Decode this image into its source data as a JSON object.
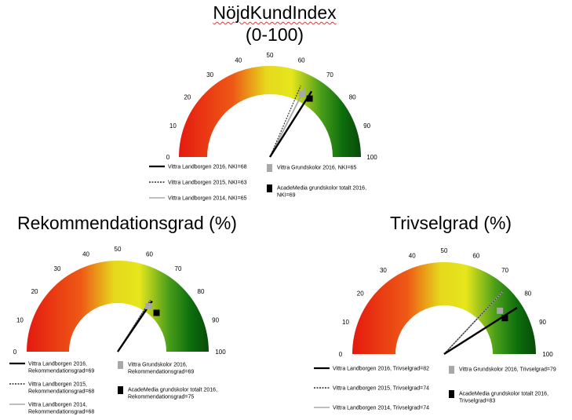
{
  "legend_styles": {
    "current_year": "solid-thick",
    "previous_year": "dotted",
    "two_years_ago": "solid-gray",
    "grundskolor_marker": "gray-square",
    "academedia_marker": "black-square"
  },
  "colors": {
    "red": "#e41a10",
    "yellow": "#e6e61c",
    "green": "#0c6e0c",
    "dark_green": "#0a4a0a",
    "gray": "#a8a8a8",
    "black": "#000000"
  },
  "chart_data": [
    {
      "type": "gauge",
      "title": "NöjdKundIndex",
      "subtitle": "(0-100)",
      "range": [
        0,
        100
      ],
      "ticks": [
        "0",
        "10",
        "20",
        "30",
        "40",
        "50",
        "60",
        "70",
        "80",
        "90",
        "100"
      ],
      "series": [
        {
          "name": "Vittra Landborgen 2016, NKI=68",
          "value": 68,
          "style": "solid-thick"
        },
        {
          "name": "Vittra Landborgen 2015, NKI=63",
          "value": 63,
          "style": "dotted"
        },
        {
          "name": "Vittra Landborgen 2014, NKI=65",
          "value": 65,
          "style": "solid-gray"
        }
      ],
      "markers": [
        {
          "name": "Vittra Grundskolor 2016, NKI=65",
          "value": 65,
          "style": "gray-square"
        },
        {
          "name_lines": [
            "AcadeMedia grundskolor totalt 2016,",
            "NKI=69"
          ],
          "value": 69,
          "style": "black-square"
        }
      ]
    },
    {
      "type": "gauge",
      "title": "Rekommendationsgrad (%)",
      "range": [
        0,
        100
      ],
      "ticks": [
        "0",
        "10",
        "20",
        "30",
        "40",
        "50",
        "60",
        "70",
        "80",
        "90",
        "100"
      ],
      "series": [
        {
          "name_lines": [
            "Vittra Landborgen 2016,",
            "Rekommendationsgrad=69"
          ],
          "value": 69,
          "style": "solid-thick"
        },
        {
          "name_lines": [
            "Vittra Landborgen 2015,",
            "Rekommendationsgrad=68"
          ],
          "value": 68,
          "style": "dotted"
        },
        {
          "name_lines": [
            "Vittra Landborgen 2014,",
            "Rekommendationsgrad=68"
          ],
          "value": 68,
          "style": "solid-gray"
        }
      ],
      "markers": [
        {
          "name_lines": [
            "Vittra Grundskolor 2016,",
            "Rekommendationsgrad=69"
          ],
          "value": 69,
          "style": "gray-square"
        },
        {
          "name_lines": [
            "AcadeMedia grundskolor totalt 2016,",
            "Rekommendationsgrad=75"
          ],
          "value": 75,
          "style": "black-square"
        }
      ]
    },
    {
      "type": "gauge",
      "title": "Trivselgrad (%)",
      "range": [
        0,
        100
      ],
      "ticks": [
        "0",
        "10",
        "20",
        "30",
        "40",
        "50",
        "60",
        "70",
        "80",
        "90",
        "100"
      ],
      "series": [
        {
          "name": "Vittra Landborgen 2016, Trivselgrad=82",
          "value": 82,
          "style": "solid-thick"
        },
        {
          "name": "Vittra Landborgen 2015, Trivselgrad=74",
          "value": 74,
          "style": "dotted"
        },
        {
          "name": "Vittra Landborgen 2014, Trivselgrad=74",
          "value": 74,
          "style": "solid-gray"
        }
      ],
      "markers": [
        {
          "name": "Vittra Grundskolor 2016, Trivselgrad=79",
          "value": 79,
          "style": "gray-square"
        },
        {
          "name_lines": [
            "AcadeMedia grundskolor totalt 2016,",
            "Trivselgrad=83"
          ],
          "value": 83,
          "style": "black-square"
        }
      ]
    }
  ]
}
